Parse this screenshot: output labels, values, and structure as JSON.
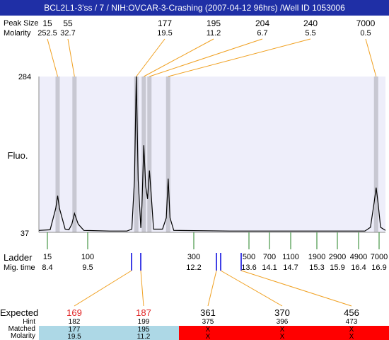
{
  "header": {
    "title": "BCL2L1-3'ss / 7 / NIH:OVCAR-3-Crashing (2007-04-12 96hrs) /Well ID 1053006"
  },
  "row_labels": {
    "peak_size": "Peak Size",
    "molarity": "Molarity",
    "fluo": "Fluo.",
    "ladder": "Ladder",
    "mig_time": "Mig. time",
    "expected": "Expected",
    "hint": "Hint",
    "matched": "Matched",
    "bottom_molarity": "Molarity"
  },
  "colors": {
    "title_bg": "#1f2fa6",
    "plot_bg": "#eeeefa",
    "band": "#c8c8d2",
    "orange": "#f0a020",
    "green": "#208020",
    "blue": "#0000dd",
    "matched_bg": "#add8e6",
    "unmatched_bg": "#ff0000",
    "expected_red": "#e02020"
  },
  "chart_data": {
    "type": "line",
    "title": "BCL2L1-3'ss / 7 / NIH:OVCAR-3-Crashing (2007-04-12 96hrs) /Well ID 1053006",
    "ylabel": "Fluo.",
    "ylim": [
      37,
      284
    ],
    "y_ticks": [
      "284",
      "37"
    ],
    "peaks": [
      {
        "size": "15",
        "molarity": "252.5",
        "mig_time": 8.4
      },
      {
        "size": "55",
        "molarity": "32.7",
        "mig_time": 8.85
      },
      {
        "size": "177",
        "molarity": "19.5",
        "mig_time": 10.5
      },
      {
        "size": "195",
        "molarity": "11.2",
        "mig_time": 10.7
      },
      {
        "size": "204",
        "molarity": "6.7",
        "mig_time": 10.85
      },
      {
        "size": "240",
        "molarity": "5.5",
        "mig_time": 11.35
      },
      {
        "size": "7000",
        "molarity": "0.5",
        "mig_time": 16.9
      }
    ],
    "ladder": [
      {
        "size": "15",
        "mig_time": "8.4"
      },
      {
        "size": "100",
        "mig_time": "9.5"
      },
      {
        "size": "300",
        "mig_time": "12.2"
      },
      {
        "size": "500",
        "mig_time": "13.6"
      },
      {
        "size": "700",
        "mig_time": "14.1"
      },
      {
        "size": "1100",
        "mig_time": "14.7"
      },
      {
        "size": "1900",
        "mig_time": "15.3"
      },
      {
        "size": "2900",
        "mig_time": "15.9"
      },
      {
        "size": "4900",
        "mig_time": "16.4"
      },
      {
        "size": "7000",
        "mig_time": "16.9"
      }
    ],
    "trace": [
      [
        7.9,
        40
      ],
      [
        8.2,
        41
      ],
      [
        8.35,
        75
      ],
      [
        8.4,
        95
      ],
      [
        8.45,
        75
      ],
      [
        8.6,
        42
      ],
      [
        8.7,
        41
      ],
      [
        8.78,
        50
      ],
      [
        8.85,
        67
      ],
      [
        8.95,
        50
      ],
      [
        9.1,
        40
      ],
      [
        9.8,
        39
      ],
      [
        10.25,
        39
      ],
      [
        10.38,
        42
      ],
      [
        10.45,
        120
      ],
      [
        10.5,
        284
      ],
      [
        10.55,
        120
      ],
      [
        10.62,
        44
      ],
      [
        10.65,
        80
      ],
      [
        10.7,
        175
      ],
      [
        10.75,
        110
      ],
      [
        10.8,
        90
      ],
      [
        10.85,
        135
      ],
      [
        10.9,
        95
      ],
      [
        10.96,
        42
      ],
      [
        11.2,
        42
      ],
      [
        11.3,
        60
      ],
      [
        11.35,
        122
      ],
      [
        11.4,
        60
      ],
      [
        11.5,
        40
      ],
      [
        13,
        39
      ],
      [
        16.6,
        39
      ],
      [
        16.75,
        45
      ],
      [
        16.85,
        85
      ],
      [
        16.9,
        108
      ],
      [
        16.95,
        85
      ],
      [
        17.02,
        45
      ],
      [
        17.15,
        40
      ]
    ],
    "expected": [
      {
        "expected": "169",
        "hint": "182",
        "matched": "177",
        "molarity": "19.5",
        "status": "matched"
      },
      {
        "expected": "187",
        "hint": "199",
        "matched": "195",
        "molarity": "11.2",
        "status": "matched"
      },
      {
        "expected": "361",
        "hint": "375",
        "matched": "X",
        "molarity": "X",
        "status": "unmatched"
      },
      {
        "expected": "370",
        "hint": "396",
        "matched": "X",
        "molarity": "X",
        "status": "unmatched"
      },
      {
        "expected": "456",
        "hint": "473",
        "matched": "X",
        "molarity": "X",
        "status": "unmatched"
      }
    ]
  }
}
